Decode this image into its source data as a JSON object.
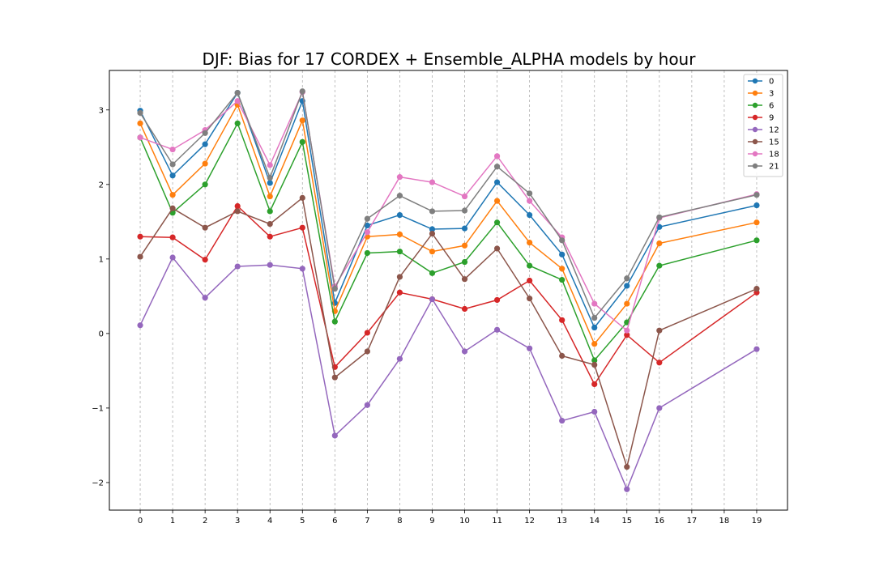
{
  "chart_data": {
    "type": "line",
    "title": "DJF: Bias for 17 CORDEX + Ensemble_ALPHA models by hour",
    "xlabel": "",
    "ylabel": "",
    "x_ticks": [
      0,
      1,
      2,
      3,
      4,
      5,
      6,
      7,
      8,
      9,
      10,
      11,
      12,
      13,
      14,
      15,
      16,
      17,
      18,
      19
    ],
    "y_ticks": [
      -2,
      -1,
      0,
      1,
      2,
      3
    ],
    "xlim": [
      -0.95,
      19.95
    ],
    "ylim": [
      -2.37,
      3.53
    ],
    "grid": "vertical dashed",
    "legend_position": "top-right",
    "x": [
      0,
      1,
      2,
      3,
      4,
      5,
      6,
      7,
      8,
      9,
      10,
      11,
      12,
      13,
      14,
      15,
      16,
      19
    ],
    "series": [
      {
        "name": "0",
        "color": "#1f77b4",
        "values": [
          2.99,
          2.12,
          2.54,
          3.23,
          2.02,
          3.12,
          0.41,
          1.45,
          1.59,
          1.4,
          1.41,
          2.03,
          1.59,
          1.06,
          0.08,
          0.64,
          1.43,
          1.72
        ]
      },
      {
        "name": "3",
        "color": "#ff7f0e",
        "values": [
          2.82,
          1.86,
          2.28,
          3.07,
          1.84,
          2.86,
          0.3,
          1.3,
          1.33,
          1.1,
          1.18,
          1.78,
          1.22,
          0.87,
          -0.14,
          0.4,
          1.21,
          1.49
        ]
      },
      {
        "name": "6",
        "color": "#2ca02c",
        "values": [
          2.63,
          1.62,
          2.0,
          2.82,
          1.64,
          2.57,
          0.16,
          1.08,
          1.1,
          0.81,
          0.96,
          1.49,
          0.91,
          0.72,
          -0.36,
          0.15,
          0.91,
          1.25
        ]
      },
      {
        "name": "9",
        "color": "#d62728",
        "values": [
          1.3,
          1.29,
          0.99,
          1.71,
          1.3,
          1.42,
          -0.45,
          0.01,
          0.55,
          0.46,
          0.33,
          0.45,
          0.71,
          0.18,
          -0.68,
          -0.02,
          -0.39,
          0.55
        ]
      },
      {
        "name": "12",
        "color": "#9467bd",
        "values": [
          0.11,
          1.02,
          0.48,
          0.9,
          0.92,
          0.87,
          -1.37,
          -0.96,
          -0.34,
          0.46,
          -0.24,
          0.05,
          -0.2,
          -1.17,
          -1.05,
          -2.09,
          -1.0,
          -0.21
        ]
      },
      {
        "name": "15",
        "color": "#8c564b",
        "values": [
          1.03,
          1.68,
          1.42,
          1.64,
          1.47,
          1.82,
          -0.59,
          -0.24,
          0.76,
          1.34,
          0.73,
          1.14,
          0.47,
          -0.3,
          -0.42,
          -1.79,
          0.04,
          0.6
        ]
      },
      {
        "name": "18",
        "color": "#e377c2",
        "values": [
          2.63,
          2.47,
          2.73,
          3.12,
          2.26,
          3.24,
          0.63,
          1.36,
          2.1,
          2.03,
          1.84,
          2.38,
          1.78,
          1.29,
          0.4,
          0.04,
          1.55,
          1.87
        ]
      },
      {
        "name": "21",
        "color": "#7f7f7f",
        "values": [
          2.96,
          2.27,
          2.69,
          3.23,
          2.09,
          3.25,
          0.6,
          1.54,
          1.85,
          1.64,
          1.65,
          2.24,
          1.88,
          1.25,
          0.21,
          0.74,
          1.56,
          1.86
        ]
      }
    ]
  }
}
